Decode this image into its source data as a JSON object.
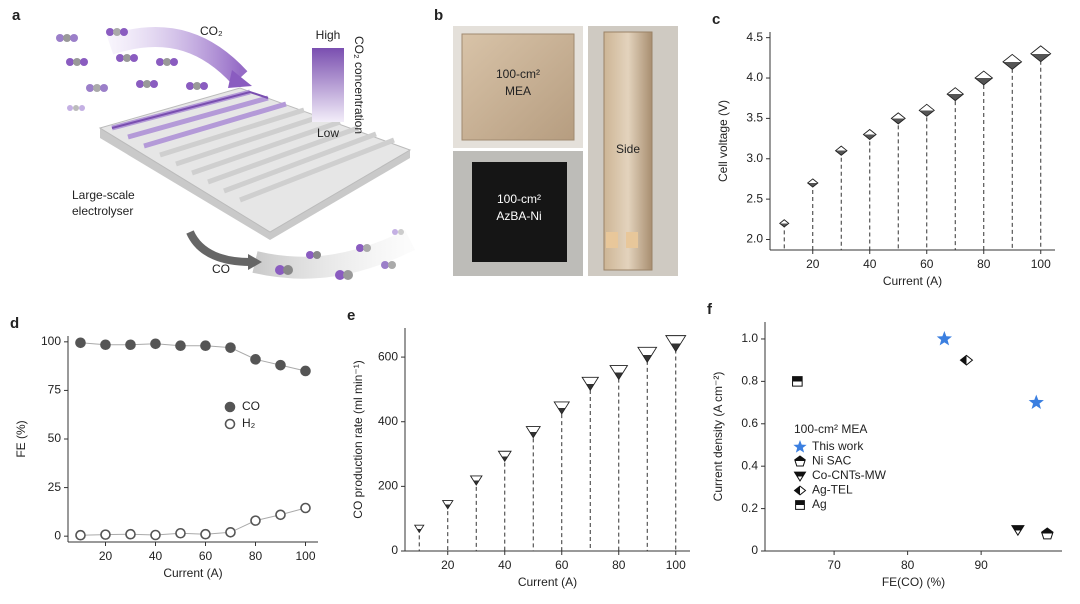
{
  "illustration": {
    "label": "a",
    "inlet": "CO₂",
    "legend_high": "High",
    "legend_low": "Low",
    "legend_title": "CO₂ concentration",
    "device": [
      "Large-scale",
      "electrolyser"
    ],
    "outlet": "CO"
  },
  "photos": {
    "label": "b",
    "mea": [
      "100-cm²",
      "MEA"
    ],
    "electrode": [
      "100-cm²",
      "AzBA-Ni"
    ],
    "side": "Side"
  },
  "chart_data": [
    {
      "label": "c",
      "type": "stem",
      "marker": "diamond",
      "fill": "#555555",
      "x": [
        10,
        20,
        30,
        40,
        50,
        60,
        70,
        80,
        90,
        100
      ],
      "values": [
        2.2,
        2.7,
        3.1,
        3.3,
        3.5,
        3.6,
        3.8,
        4.0,
        4.2,
        4.3
      ],
      "xlabel": "Current (A)",
      "ylabel": "Cell voltage (V)",
      "xlim": [
        5,
        105
      ],
      "ylim": [
        1.87,
        4.57
      ],
      "xticks": [
        20,
        40,
        60,
        80,
        100
      ],
      "yticks": [
        {
          "value": 2,
          "label": "2.0"
        },
        2.5,
        {
          "value": 3,
          "label": "3.0"
        },
        3.5,
        {
          "value": 4,
          "label": "4.0"
        },
        4.5
      ]
    },
    {
      "label": "d",
      "type": "line",
      "legend": "center-right",
      "x": [
        10,
        20,
        30,
        40,
        50,
        60,
        70,
        80,
        90,
        100
      ],
      "series": [
        {
          "name": "CO",
          "color": "#555555",
          "marker": "filled",
          "values": [
            99.5,
            98.5,
            98.5,
            99,
            98,
            98,
            97,
            91,
            88,
            85
          ]
        },
        {
          "name": "H₂",
          "color": "#555555",
          "marker": "open",
          "values": [
            0.5,
            0.8,
            1,
            0.6,
            1.5,
            1,
            2,
            8,
            11,
            14.5
          ]
        }
      ],
      "xlabel": "Current (A)",
      "ylabel": "FE (%)",
      "xlim": [
        5,
        105
      ],
      "ylim": [
        -3,
        103
      ],
      "xticks": [
        20,
        40,
        60,
        80,
        100
      ],
      "yticks": [
        0,
        25,
        50,
        75,
        100
      ]
    },
    {
      "label": "e",
      "type": "stem",
      "marker": "triangle-down",
      "fill": "#333333",
      "x": [
        10,
        20,
        30,
        40,
        50,
        60,
        70,
        80,
        90,
        100
      ],
      "values": [
        70,
        145,
        220,
        295,
        370,
        445,
        520,
        555,
        610,
        645
      ],
      "xlabel": "Current (A)",
      "ylabel": "CO production rate (ml min⁻¹)",
      "xlim": [
        5,
        105
      ],
      "ylim": [
        0,
        690
      ],
      "xticks": [
        20,
        40,
        60,
        80,
        100
      ],
      "yticks": [
        0,
        200,
        400,
        600
      ]
    },
    {
      "label": "f",
      "type": "scatter",
      "legend_title": "100-cm² MEA",
      "series": [
        {
          "name": "This work",
          "color": "#3b7fe0",
          "marker": "star",
          "x": [
            85,
            97.5
          ],
          "values": [
            1.0,
            0.7
          ]
        },
        {
          "name": "Ni SAC",
          "color": "#111111",
          "marker": "pentagon",
          "x": [
            99
          ],
          "values": [
            0.08
          ]
        },
        {
          "name": "Co-CNTs-MW",
          "color": "#111111",
          "marker": "triangle-down",
          "x": [
            95
          ],
          "values": [
            0.1
          ]
        },
        {
          "name": "Ag-TEL",
          "color": "#111111",
          "marker": "diamond",
          "x": [
            88
          ],
          "values": [
            0.9
          ]
        },
        {
          "name": "Ag",
          "color": "#111111",
          "marker": "square",
          "x": [
            65
          ],
          "values": [
            0.8
          ]
        }
      ],
      "xlabel": "FE(CO) (%)",
      "ylabel": "Current density (A cm⁻²)",
      "xlim": [
        60.6,
        101
      ],
      "ylim": [
        0,
        1.08
      ],
      "xticks": [
        70,
        80,
        90
      ],
      "yticks": [
        0,
        0.2,
        0.4,
        0.6,
        0.8,
        {
          "value": 1,
          "label": "1.0"
        }
      ]
    }
  ]
}
